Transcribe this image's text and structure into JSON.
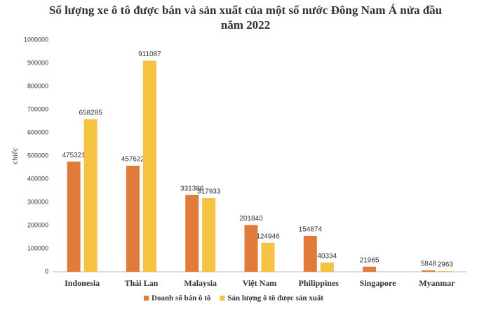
{
  "chart_data": {
    "type": "bar",
    "title": "Số lượng xe ô tô được bán và sản xuất của một số nước Đông Nam Á nửa đầu năm 2022",
    "y_label": "chiếc",
    "categories": [
      "Indonesia",
      "Thái Lan",
      "Malaysia",
      "Việt Nam",
      "Philippines",
      "Singapore",
      "Myanmar"
    ],
    "series": [
      {
        "name": "Doanh số bán ô tô",
        "color": "#e07b39",
        "values": [
          475321,
          457622,
          331386,
          201840,
          154874,
          21965,
          5848
        ]
      },
      {
        "name": "Sản lượng ô tô được sản xuất",
        "color": "#f5c242",
        "values": [
          658285,
          911087,
          317933,
          124946,
          40334,
          null,
          2963
        ]
      }
    ],
    "ylim": [
      0,
      1000000
    ],
    "yticks": [
      0,
      100000,
      200000,
      300000,
      400000,
      500000,
      600000,
      700000,
      800000,
      900000,
      1000000
    ],
    "grid": false,
    "legend": "bottom"
  }
}
